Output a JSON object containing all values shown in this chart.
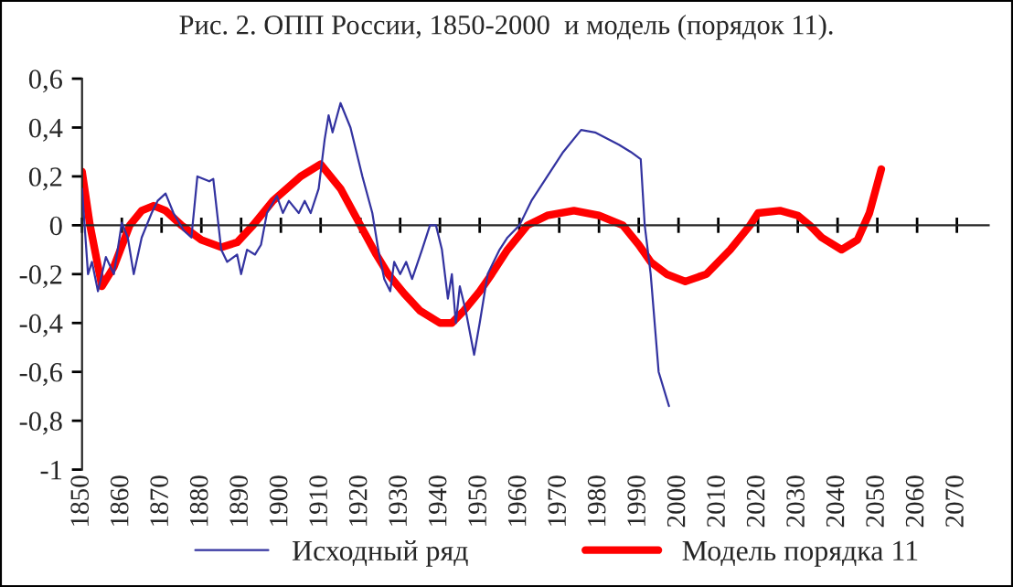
{
  "chart_data": {
    "type": "line",
    "title": "Рис. 2. ОПП России, 1850-2000  и модель (порядок 11).",
    "series": [
      {
        "name": "Исходный ряд",
        "color": "#3333a0",
        "x": [
          1850,
          1851.5,
          1852.5,
          1854,
          1856,
          1858,
          1860,
          1861.5,
          1863,
          1865,
          1867.5,
          1869,
          1871,
          1873,
          1875.5,
          1877.5,
          1879,
          1882,
          1883,
          1885,
          1886.5,
          1889,
          1890,
          1891.5,
          1893.5,
          1895,
          1896.5,
          1899,
          1900.5,
          1902,
          1904.5,
          1906,
          1907.5,
          1909.5,
          1911,
          1912,
          1913,
          1915,
          1917.5,
          1920.5,
          1923,
          1924.5,
          1926,
          1927.5,
          1928.5,
          1930,
          1931.5,
          1933,
          1935.5,
          1937.5,
          1939,
          1940.5,
          1942,
          1943,
          1944,
          1945,
          1946.5,
          1948.6,
          1950,
          1952,
          1955,
          1957,
          1960,
          1963,
          1967,
          1971,
          1975.5,
          1979,
          1985,
          1988,
          1990.5,
          1991.5,
          1993,
          1995,
          1997.6
        ],
        "values": [
          0.15,
          -0.2,
          -0.15,
          -0.27,
          -0.13,
          -0.2,
          0.01,
          -0.05,
          -0.2,
          -0.05,
          0.05,
          0.1,
          0.13,
          0.05,
          -0.02,
          -0.05,
          0.2,
          0.18,
          0.19,
          -0.1,
          -0.15,
          -0.12,
          -0.2,
          -0.1,
          -0.12,
          -0.08,
          0.05,
          0.12,
          0.05,
          0.1,
          0.05,
          0.1,
          0.05,
          0.15,
          0.35,
          0.45,
          0.38,
          0.5,
          0.4,
          0.2,
          0.05,
          -0.1,
          -0.22,
          -0.27,
          -0.15,
          -0.2,
          -0.15,
          -0.22,
          -0.1,
          0.0,
          0.0,
          -0.1,
          -0.3,
          -0.2,
          -0.4,
          -0.25,
          -0.35,
          -0.53,
          -0.4,
          -0.2,
          -0.1,
          -0.05,
          0.0,
          0.1,
          0.2,
          0.3,
          0.39,
          0.38,
          0.33,
          0.3,
          0.27,
          0.0,
          -0.2,
          -0.6,
          -0.74
        ]
      },
      {
        "name": "Модель порядка 11",
        "color": "#ff0000",
        "x": [
          1850,
          1852,
          1855,
          1858,
          1862,
          1865,
          1868,
          1871,
          1875,
          1880,
          1885,
          1889,
          1893,
          1898,
          1905,
          1910,
          1915,
          1920,
          1924,
          1927,
          1931,
          1935,
          1940,
          1943,
          1946,
          1950,
          1953,
          1957,
          1962,
          1967,
          1973.7,
          1980,
          1986,
          1990,
          1993,
          1997,
          2001.7,
          2007,
          2013,
          2018,
          2020,
          2025.5,
          2030,
          2033,
          2036,
          2041,
          2045,
          2048,
          2051
        ],
        "values": [
          0.22,
          0.0,
          -0.25,
          -0.17,
          0.0,
          0.06,
          0.08,
          0.06,
          0.0,
          -0.06,
          -0.09,
          -0.07,
          0.0,
          0.1,
          0.2,
          0.25,
          0.15,
          0.0,
          -0.12,
          -0.2,
          -0.28,
          -0.35,
          -0.4,
          -0.4,
          -0.35,
          -0.27,
          -0.2,
          -0.1,
          0.0,
          0.04,
          0.06,
          0.04,
          0.0,
          -0.08,
          -0.15,
          -0.2,
          -0.23,
          -0.2,
          -0.1,
          0.0,
          0.05,
          0.06,
          0.04,
          0.0,
          -0.05,
          -0.1,
          -0.06,
          0.05,
          0.23
        ]
      }
    ],
    "xlim": [
      1850,
      2078
    ],
    "xticks": [
      1850,
      1860,
      1870,
      1880,
      1890,
      1900,
      1910,
      1920,
      1930,
      1940,
      1950,
      1960,
      1970,
      1980,
      1990,
      2000,
      2010,
      2020,
      2030,
      2040,
      2050,
      2060,
      2070
    ],
    "ylim": [
      -1,
      0.6
    ],
    "yticks": [
      {
        "value": -1,
        "label": "-1"
      },
      {
        "value": -0.8,
        "label": "-0,8"
      },
      {
        "value": -0.6,
        "label": "-0,6"
      },
      {
        "value": -0.4,
        "label": "-0,4"
      },
      {
        "value": -0.2,
        "label": "-0,2"
      },
      {
        "value": 0,
        "label": "0"
      },
      {
        "value": 0.2,
        "label": "0,2"
      },
      {
        "value": 0.4,
        "label": "0,4"
      },
      {
        "value": 0.6,
        "label": "0,6"
      }
    ],
    "legend": "bottom",
    "marker": "none",
    "line_style": "solid"
  }
}
